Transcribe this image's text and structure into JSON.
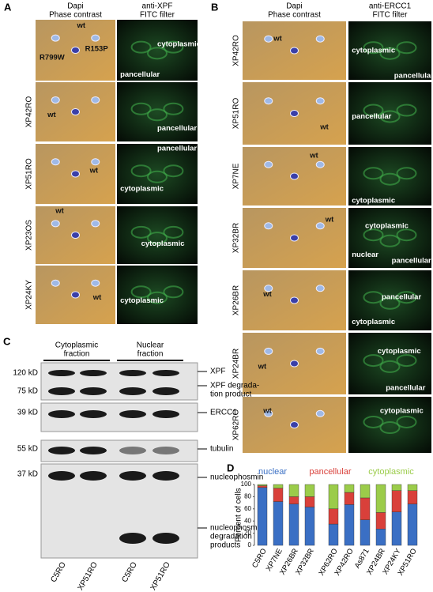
{
  "panel_a": {
    "letter": "A",
    "headers": [
      [
        "Dapi",
        "Phase contrast"
      ],
      [
        "anti-XPF",
        "FITC filter"
      ]
    ],
    "rows": [
      {
        "left": [
          "wt",
          "R799W",
          "R153P"
        ],
        "right": [
          "cytoplasmic",
          "pancellular"
        ]
      },
      {
        "name": "XP42RO",
        "left": [
          "wt"
        ],
        "right": [
          "pancellular"
        ]
      },
      {
        "name": "XP51RO",
        "left": [
          "wt"
        ],
        "right": [
          "pancellular",
          "cytoplasmic"
        ]
      },
      {
        "name": "XP23OS",
        "left": [
          "wt"
        ],
        "right": [
          "cytoplasmic"
        ]
      },
      {
        "name": "XP24KY",
        "left": [
          "wt"
        ],
        "right": [
          "cytoplasmic"
        ]
      }
    ]
  },
  "panel_b": {
    "letter": "B",
    "headers": [
      [
        "Dapi",
        "Phase contrast"
      ],
      [
        "anti-ERCC1",
        "FITC filter"
      ]
    ],
    "rows": [
      {
        "name": "XP42RO",
        "left": [
          "wt"
        ],
        "right": [
          "cytoplasmic",
          "pancellular"
        ]
      },
      {
        "name": "XP51RO",
        "left": [
          "wt"
        ],
        "right": [
          "pancellular"
        ]
      },
      {
        "name": "XP7NE",
        "left": [
          "wt"
        ],
        "right": [
          "cytoplasmic"
        ]
      },
      {
        "name": "XP32BR",
        "left": [
          "wt"
        ],
        "right": [
          "cytoplasmic",
          "nuclear",
          "pancellular"
        ]
      },
      {
        "name": "XP26BR",
        "left": [
          "wt"
        ],
        "right": [
          "pancellular",
          "cytoplasmic"
        ]
      },
      {
        "name": "XP24BR",
        "left": [
          "wt"
        ],
        "right": [
          "cytoplasmic",
          "pancellular"
        ]
      },
      {
        "name": "XP62RO",
        "left": [
          "wt"
        ],
        "right": [
          "cytoplasmic"
        ]
      }
    ]
  },
  "panel_c": {
    "letter": "C",
    "fractions": [
      [
        "Cytoplasmic",
        "fraction"
      ],
      [
        "Nuclear",
        "fraction"
      ]
    ],
    "markers": [
      "120 kD",
      "75 kD",
      "39 kD",
      "55 kD",
      "37 kD"
    ],
    "bands": [
      [
        "XPF"
      ],
      [
        "XPF degrada-",
        "tion product"
      ],
      [
        "ERCC1"
      ],
      [
        "tubulin"
      ],
      [
        "nucleophosmin"
      ],
      [
        "nucleophosmin",
        "degradation",
        "products"
      ]
    ],
    "lanes": [
      "C5RO",
      "XP51RO",
      "C5RO",
      "XP51RO"
    ]
  },
  "chart_data": {
    "type": "bar",
    "stacked": true,
    "letter": "D",
    "ylabel": "Percent of cells",
    "categories": [
      "C5RO",
      "XP7NE",
      "XP26BR",
      "XP32BR",
      "XP62RO",
      "XP42RO",
      "As871",
      "XP24BR",
      "XP24KY",
      "XP51RO"
    ],
    "series": [
      {
        "name": "nuclear",
        "color": "#3a6fc4",
        "values": [
          95,
          72,
          68,
          63,
          35,
          67,
          42,
          27,
          55,
          68
        ]
      },
      {
        "name": "pancellular",
        "color": "#d9403a",
        "values": [
          3,
          22,
          12,
          17,
          25,
          20,
          36,
          27,
          35,
          22
        ]
      },
      {
        "name": "cytoplasmic",
        "color": "#9bcc4a",
        "values": [
          2,
          6,
          20,
          20,
          40,
          13,
          22,
          46,
          10,
          10
        ]
      }
    ],
    "ylim": [
      0,
      100
    ],
    "yticks": [
      0,
      20,
      40,
      60,
      80,
      100
    ]
  }
}
